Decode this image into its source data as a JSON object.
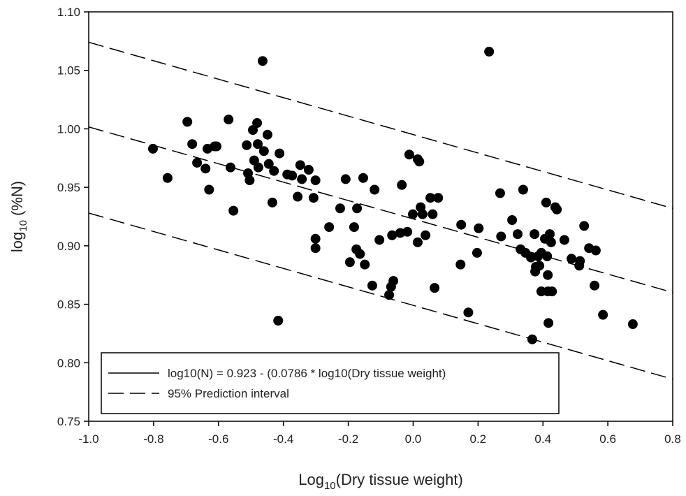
{
  "chart_data": {
    "type": "scatter",
    "xlabel": {
      "base": "Log",
      "sub": "10",
      "rest": "(Dry tissue weight)"
    },
    "ylabel": {
      "base": "log",
      "sub": "10",
      "rest": " (%N)"
    },
    "xlim": [
      -1.0,
      0.8
    ],
    "ylim": [
      0.75,
      1.1
    ],
    "xticks": [
      {
        "value": -1.0,
        "label": "-1.0"
      },
      -0.8,
      -0.6,
      -0.4,
      -0.2,
      {
        "value": 0,
        "label": "0.0"
      },
      0.2,
      0.4,
      0.6,
      0.8
    ],
    "yticks": [
      0.75,
      {
        "value": 0.8,
        "label": "0.80"
      },
      0.85,
      {
        "value": 0.9,
        "label": "0.90"
      },
      0.95,
      {
        "value": 1.0,
        "label": "1.00"
      },
      1.05,
      {
        "value": 1.1,
        "label": "1.10"
      }
    ],
    "color": "#000000",
    "x": [
      -0.802,
      -0.757,
      -0.696,
      -0.681,
      -0.666,
      -0.64,
      -0.634,
      -0.629,
      -0.612,
      -0.606,
      -0.569,
      -0.563,
      -0.554,
      -0.513,
      -0.509,
      -0.504,
      -0.494,
      -0.49,
      -0.481,
      -0.479,
      -0.477,
      -0.464,
      -0.46,
      -0.449,
      -0.445,
      -0.434,
      -0.429,
      -0.416,
      -0.412,
      -0.388,
      -0.373,
      -0.356,
      -0.348,
      -0.343,
      -0.322,
      -0.307,
      -0.301,
      -0.301,
      -0.301,
      -0.259,
      -0.225,
      -0.208,
      -0.195,
      -0.182,
      -0.175,
      -0.173,
      -0.164,
      -0.154,
      -0.149,
      -0.126,
      -0.119,
      -0.104,
      -0.074,
      -0.068,
      -0.061,
      -0.065,
      -0.04,
      -0.035,
      -0.018,
      -0.012,
      -0.001,
      0.014,
      0.019,
      0.014,
      0.023,
      0.029,
      0.038,
      0.053,
      0.06,
      0.066,
      0.077,
      0.146,
      0.148,
      0.17,
      0.197,
      0.202,
      0.234,
      0.268,
      0.271,
      0.305,
      0.322,
      0.331,
      0.339,
      0.346,
      0.363,
      0.367,
      0.374,
      0.376,
      0.385,
      0.389,
      0.395,
      0.395,
      0.406,
      0.41,
      0.413,
      0.415,
      0.415,
      0.417,
      0.421,
      0.425,
      0.428,
      0.438,
      0.443,
      0.466,
      0.488,
      0.512,
      0.514,
      0.527,
      0.542,
      0.559,
      0.563,
      0.585,
      0.677,
      0.378
    ],
    "values": [
      0.983,
      0.958,
      1.006,
      0.987,
      0.971,
      0.966,
      0.983,
      0.948,
      0.985,
      0.985,
      1.008,
      0.967,
      0.93,
      0.986,
      0.962,
      0.956,
      0.999,
      0.973,
      1.005,
      0.987,
      0.967,
      1.058,
      0.981,
      0.995,
      0.97,
      0.937,
      0.964,
      0.836,
      0.979,
      0.961,
      0.96,
      0.942,
      0.969,
      0.957,
      0.965,
      0.941,
      0.956,
      0.906,
      0.898,
      0.916,
      0.932,
      0.957,
      0.886,
      0.916,
      0.897,
      0.932,
      0.893,
      0.958,
      0.884,
      0.866,
      0.948,
      0.905,
      0.858,
      0.865,
      0.87,
      0.909,
      0.911,
      0.952,
      0.912,
      0.978,
      0.927,
      0.974,
      0.972,
      0.903,
      0.933,
      0.927,
      0.909,
      0.941,
      0.927,
      0.864,
      0.941,
      0.884,
      0.918,
      0.843,
      0.894,
      0.915,
      1.066,
      0.945,
      0.908,
      0.922,
      0.91,
      0.897,
      0.948,
      0.894,
      0.89,
      0.82,
      0.91,
      0.878,
      0.891,
      0.883,
      0.894,
      0.861,
      0.906,
      0.937,
      0.891,
      0.875,
      0.861,
      0.834,
      0.91,
      0.903,
      0.861,
      0.933,
      0.931,
      0.905,
      0.889,
      0.883,
      0.887,
      0.917,
      0.898,
      0.866,
      0.896,
      0.841,
      0.833,
      0.882
    ],
    "regression": {
      "name": "log10(N) = 0.923 - (0.0786 * log10(Dry tissue weight)",
      "x": [
        -1.0,
        0.8
      ],
      "values": [
        1.0016,
        0.8601
      ]
    },
    "interval": {
      "name": "95% Prediction interval",
      "x": [
        -1.0,
        0.8
      ],
      "upper": [
        1.074,
        0.932
      ],
      "lower": [
        0.928,
        0.786
      ]
    }
  }
}
